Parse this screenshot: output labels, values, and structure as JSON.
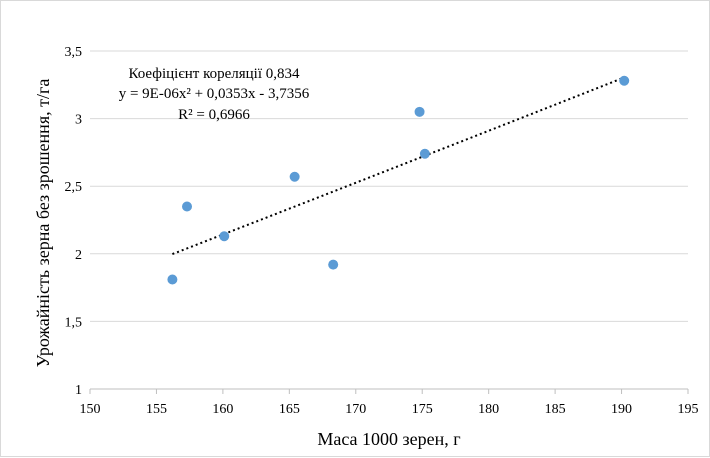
{
  "chart_data": {
    "type": "scatter",
    "title": "",
    "xlabel": "Маса 1000 зерен, г",
    "ylabel": "Урожайність зерна без зрошення, т/га",
    "xlim": [
      150,
      195
    ],
    "ylim": [
      1,
      3.5
    ],
    "x_ticks": [
      150,
      155,
      160,
      165,
      170,
      175,
      180,
      185,
      190,
      195
    ],
    "y_ticks": [
      1,
      1.5,
      2,
      2.5,
      3,
      3.5
    ],
    "x_tick_labels": [
      "150",
      "155",
      "160",
      "165",
      "170",
      "175",
      "180",
      "185",
      "190",
      "195"
    ],
    "y_tick_labels": [
      "1",
      "1,5",
      "2",
      "2,5",
      "3",
      "3,5"
    ],
    "grid": "horizontal",
    "legend": "none",
    "point_color": "#5b9bd5",
    "trendline_color": "#000000",
    "series": [
      {
        "x": [
          156.2,
          157.3,
          160.1,
          165.4,
          168.3,
          174.8,
          175.2,
          190.2
        ],
        "y": [
          1.81,
          2.35,
          2.13,
          2.57,
          1.92,
          3.05,
          2.74,
          3.28
        ]
      }
    ],
    "trendline": {
      "type": "polynomial-2",
      "coefficients": {
        "a": 9e-06,
        "b": 0.0353,
        "c": -3.7356
      },
      "x_range": [
        156.2,
        190.2
      ]
    },
    "annotations": {
      "correlation": "Коефіцієнт кореляції 0,834",
      "equation": "y = 9E-06x² + 0,0353x - 3,7356",
      "r_squared": "R² = 0,6966"
    }
  }
}
